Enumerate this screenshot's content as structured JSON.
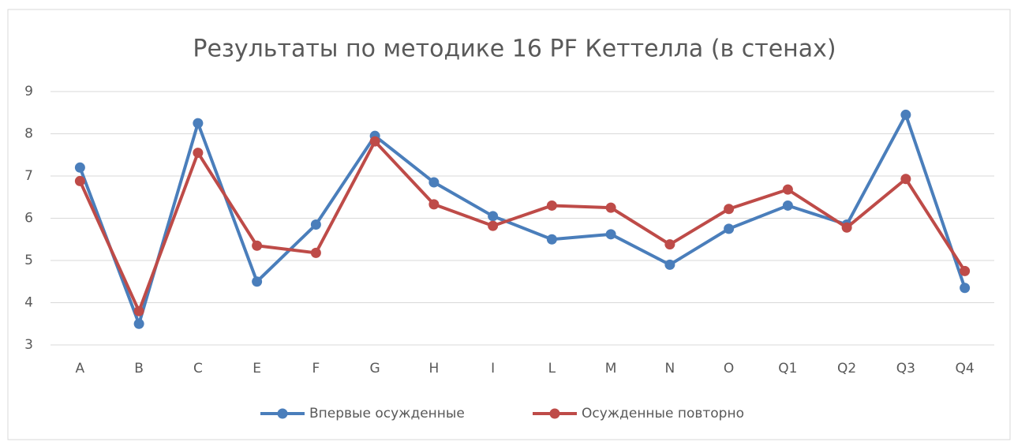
{
  "chart_data": {
    "type": "line",
    "title": "Результаты по методике 16 PF Кеттелла (в стенах)",
    "categories": [
      "A",
      "B",
      "C",
      "E",
      "F",
      "G",
      "H",
      "I",
      "L",
      "M",
      "N",
      "O",
      "Q1",
      "Q2",
      "Q3",
      "Q4"
    ],
    "series": [
      {
        "name": "Впервые осужденные",
        "color": "#4a7ebb",
        "values": [
          7.2,
          3.5,
          8.25,
          4.5,
          5.85,
          7.95,
          6.85,
          6.05,
          5.5,
          5.62,
          4.9,
          5.75,
          6.3,
          5.85,
          8.45,
          4.35
        ]
      },
      {
        "name": "Осужденные повторно",
        "color": "#be4b48",
        "values": [
          6.88,
          3.8,
          7.55,
          5.35,
          5.18,
          7.82,
          6.33,
          5.82,
          6.3,
          6.25,
          5.38,
          6.22,
          6.68,
          5.78,
          6.93,
          4.75
        ]
      }
    ],
    "ylim": [
      3,
      9
    ],
    "yticks": [
      3,
      4,
      5,
      6,
      7,
      8,
      9
    ],
    "grid": true,
    "legend": "bottom"
  }
}
